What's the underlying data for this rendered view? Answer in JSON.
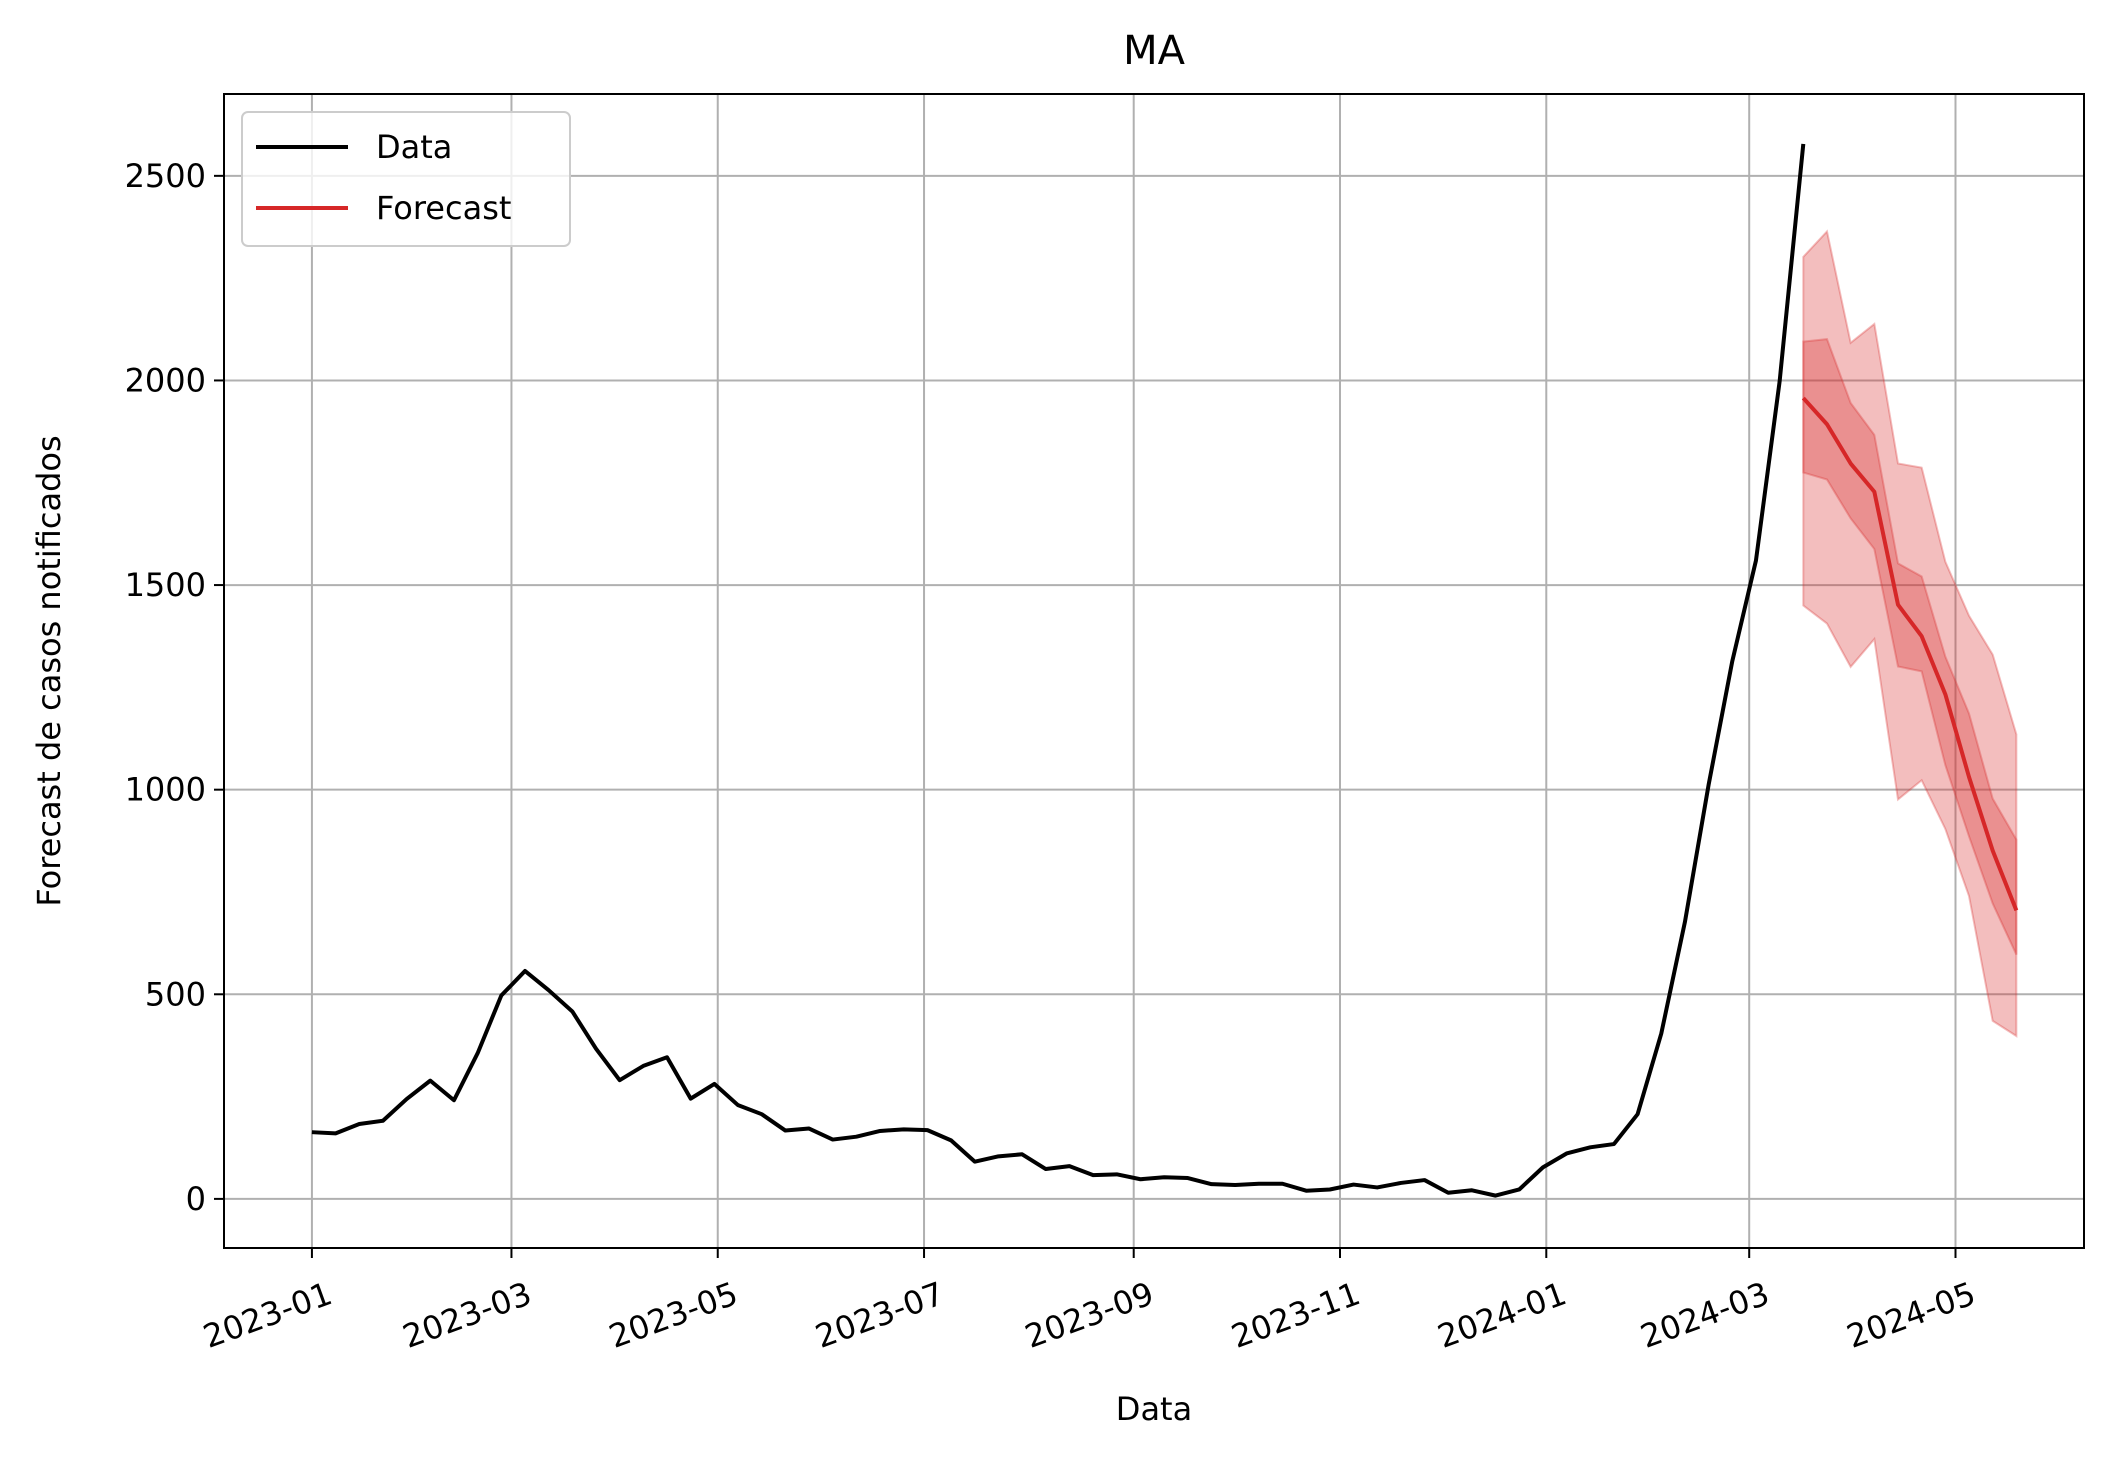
{
  "chart_data": {
    "type": "line",
    "title": "MA",
    "xlabel": "Data",
    "ylabel": "Forecast de casos notificados",
    "ylim": [
      -120,
      2700
    ],
    "yticks": [
      0,
      500,
      1000,
      1500,
      2000,
      2500
    ],
    "xlim": [
      "2022-12-06",
      "2024-06-08"
    ],
    "xticks": [
      "2023-01",
      "2023-03",
      "2023-05",
      "2023-07",
      "2023-09",
      "2023-11",
      "2024-01",
      "2024-03",
      "2024-05"
    ],
    "grid": true,
    "legend": {
      "position": "top-left",
      "entries": [
        "Data",
        "Forecast"
      ]
    },
    "colors": {
      "data": "#000000",
      "forecast": "#d62728",
      "band": "#d62728"
    },
    "series": [
      {
        "name": "Data",
        "x": [
          "2023-01-01",
          "2023-01-08",
          "2023-01-15",
          "2023-01-22",
          "2023-01-29",
          "2023-02-05",
          "2023-02-12",
          "2023-02-19",
          "2023-02-26",
          "2023-03-05",
          "2023-03-12",
          "2023-03-19",
          "2023-03-26",
          "2023-04-02",
          "2023-04-09",
          "2023-04-16",
          "2023-04-23",
          "2023-04-30",
          "2023-05-07",
          "2023-05-14",
          "2023-05-21",
          "2023-05-28",
          "2023-06-04",
          "2023-06-11",
          "2023-06-18",
          "2023-06-25",
          "2023-07-02",
          "2023-07-09",
          "2023-07-16",
          "2023-07-23",
          "2023-07-30",
          "2023-08-06",
          "2023-08-13",
          "2023-08-20",
          "2023-08-27",
          "2023-09-03",
          "2023-09-10",
          "2023-09-17",
          "2023-09-24",
          "2023-10-01",
          "2023-10-08",
          "2023-10-15",
          "2023-10-22",
          "2023-10-29",
          "2023-11-05",
          "2023-11-12",
          "2023-11-19",
          "2023-11-26",
          "2023-12-03",
          "2023-12-10",
          "2023-12-17",
          "2023-12-24",
          "2023-12-31",
          "2024-01-07",
          "2024-01-14",
          "2024-01-21",
          "2024-01-28",
          "2024-02-04",
          "2024-02-11",
          "2024-02-18",
          "2024-02-25",
          "2024-03-03",
          "2024-03-10",
          "2024-03-17"
        ],
        "values": [
          163,
          160,
          183,
          191,
          244,
          289,
          241,
          356,
          497,
          557,
          510,
          458,
          367,
          290,
          325,
          346,
          245,
          281,
          229,
          207,
          167,
          172,
          145,
          152,
          166,
          170,
          168,
          143,
          91,
          104,
          109,
          73,
          80,
          58,
          60,
          48,
          53,
          51,
          36,
          34,
          37,
          37,
          20,
          23,
          35,
          28,
          39,
          46,
          15,
          21,
          8,
          23,
          77,
          111,
          126,
          134,
          207,
          404,
          677,
          1012,
          1314,
          1560,
          1998,
          2578
        ]
      },
      {
        "name": "Forecast",
        "x": [
          "2024-03-17",
          "2024-03-24",
          "2024-03-31",
          "2024-04-07",
          "2024-04-14",
          "2024-04-21",
          "2024-04-28",
          "2024-05-05",
          "2024-05-12",
          "2024-05-19"
        ],
        "values": [
          1957,
          1893,
          1797,
          1728,
          1452,
          1375,
          1233,
          1031,
          851,
          705
        ],
        "band_outer_upper": [
          2302,
          2364,
          2092,
          2138,
          1797,
          1787,
          1557,
          1425,
          1330,
          1135
        ],
        "band_outer_lower": [
          1450,
          1406,
          1300,
          1368,
          976,
          1023,
          904,
          740,
          435,
          398
        ],
        "band_inner_upper": [
          2095,
          2101,
          1945,
          1867,
          1553,
          1521,
          1325,
          1186,
          978,
          878
        ],
        "band_inner_lower": [
          1775,
          1758,
          1663,
          1588,
          1301,
          1289,
          1060,
          886,
          722,
          597
        ]
      }
    ]
  }
}
